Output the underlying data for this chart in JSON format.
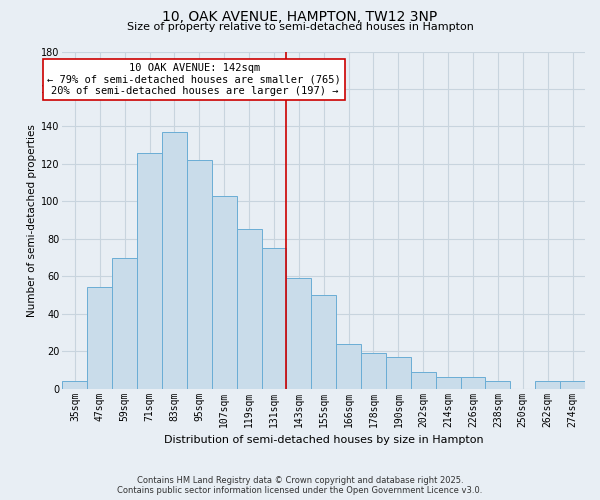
{
  "title": "10, OAK AVENUE, HAMPTON, TW12 3NP",
  "subtitle": "Size of property relative to semi-detached houses in Hampton",
  "xlabel": "Distribution of semi-detached houses by size in Hampton",
  "ylabel": "Number of semi-detached properties",
  "bar_labels": [
    "35sqm",
    "47sqm",
    "59sqm",
    "71sqm",
    "83sqm",
    "95sqm",
    "107sqm",
    "119sqm",
    "131sqm",
    "143sqm",
    "155sqm",
    "166sqm",
    "178sqm",
    "190sqm",
    "202sqm",
    "214sqm",
    "226sqm",
    "238sqm",
    "250sqm",
    "262sqm",
    "274sqm"
  ],
  "bar_values": [
    4,
    54,
    70,
    126,
    137,
    122,
    103,
    85,
    75,
    59,
    50,
    24,
    19,
    17,
    9,
    6,
    6,
    4,
    0,
    4,
    4
  ],
  "bar_color": "#c9dcea",
  "bar_edge_color": "#6aadd5",
  "highlight_line_color": "#cc0000",
  "annotation_title": "10 OAK AVENUE: 142sqm",
  "annotation_line1": "← 79% of semi-detached houses are smaller (765)",
  "annotation_line2": "20% of semi-detached houses are larger (197) →",
  "annotation_box_color": "#ffffff",
  "annotation_box_edge": "#cc0000",
  "ylim": [
    0,
    180
  ],
  "yticks": [
    0,
    20,
    40,
    60,
    80,
    100,
    120,
    140,
    160,
    180
  ],
  "footer_line1": "Contains HM Land Registry data © Crown copyright and database right 2025.",
  "footer_line2": "Contains public sector information licensed under the Open Government Licence v3.0.",
  "background_color": "#e8eef4",
  "grid_color": "#c8d4de",
  "title_fontsize": 10,
  "subtitle_fontsize": 8,
  "xlabel_fontsize": 8,
  "ylabel_fontsize": 7.5,
  "tick_fontsize": 7,
  "footer_fontsize": 6,
  "annot_fontsize": 7.5
}
